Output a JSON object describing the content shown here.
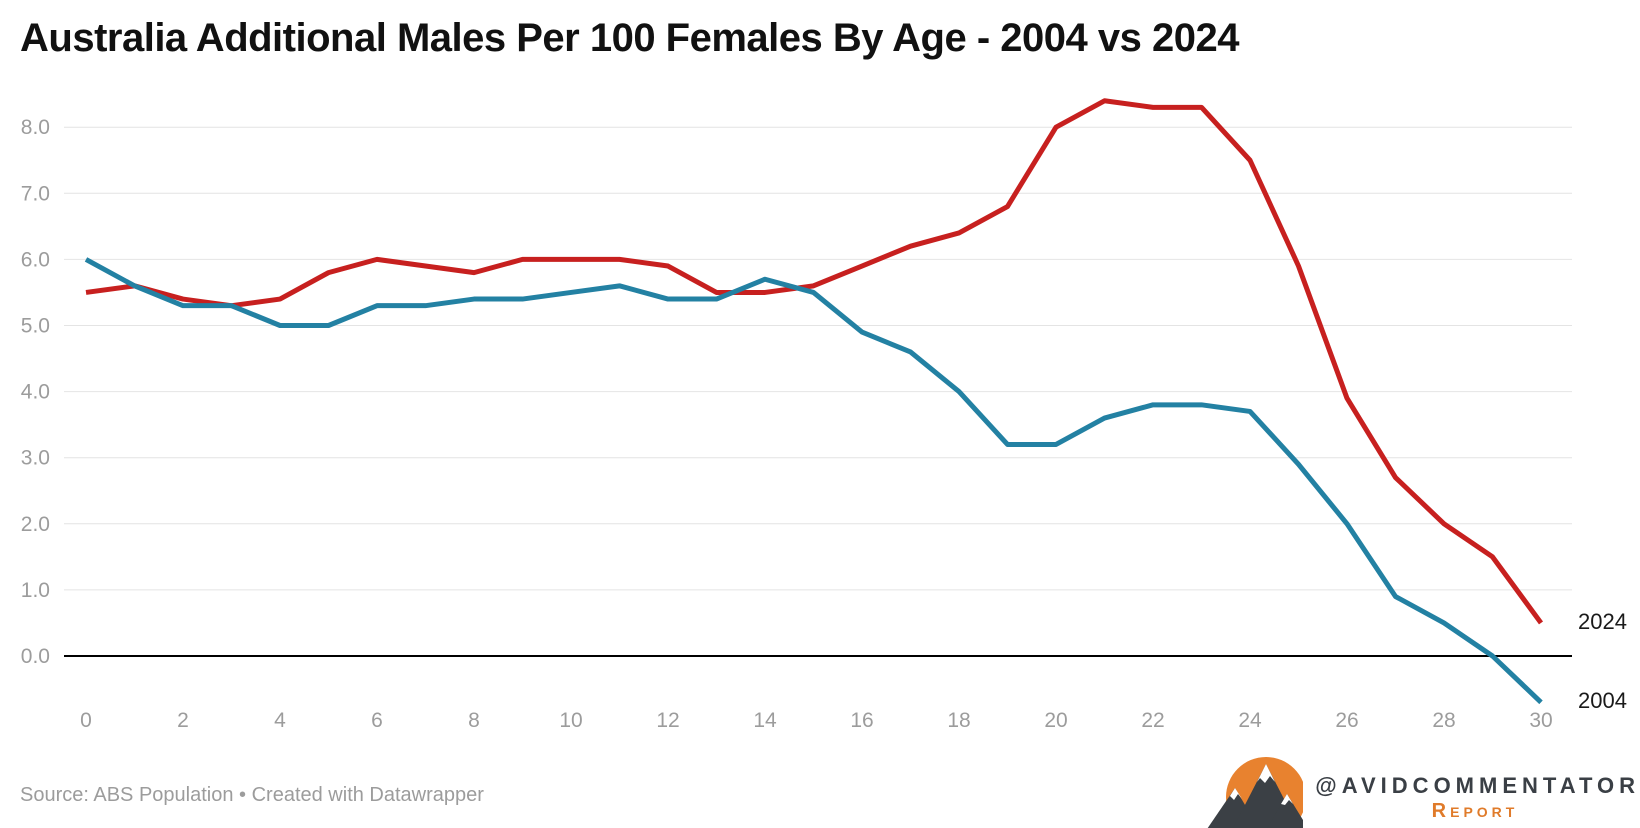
{
  "chart_data": {
    "type": "line",
    "title": "Australia Additional Males Per 100 Females By Age - 2004 vs 2024",
    "xlabel": "",
    "ylabel": "",
    "x": [
      0,
      1,
      2,
      3,
      4,
      5,
      6,
      7,
      8,
      9,
      10,
      11,
      12,
      13,
      14,
      15,
      16,
      17,
      18,
      19,
      20,
      21,
      22,
      23,
      24,
      25,
      26,
      27,
      28,
      29,
      30
    ],
    "series": [
      {
        "name": "2024",
        "color": "#c7201f",
        "values": [
          5.5,
          5.6,
          5.4,
          5.3,
          5.4,
          5.8,
          6.0,
          5.9,
          5.8,
          6.0,
          6.0,
          6.0,
          5.9,
          5.5,
          5.5,
          5.6,
          5.9,
          6.2,
          6.4,
          6.8,
          8.0,
          8.4,
          8.3,
          8.3,
          7.5,
          5.9,
          3.9,
          2.7,
          2.0,
          1.5,
          0.5
        ]
      },
      {
        "name": "2004",
        "color": "#2381a3",
        "values": [
          6.0,
          5.6,
          5.3,
          5.3,
          5.0,
          5.0,
          5.3,
          5.3,
          5.4,
          5.4,
          5.5,
          5.6,
          5.4,
          5.4,
          5.7,
          5.5,
          4.9,
          4.6,
          4.0,
          3.2,
          3.2,
          3.6,
          3.8,
          3.8,
          3.7,
          2.9,
          2.0,
          0.9,
          0.5,
          0.0,
          -0.7
        ]
      }
    ],
    "x_ticks": [
      "0",
      "2",
      "4",
      "6",
      "8",
      "10",
      "12",
      "14",
      "16",
      "18",
      "20",
      "22",
      "24",
      "26",
      "28",
      "30"
    ],
    "y_ticks": [
      "0.0",
      "1.0",
      "2.0",
      "3.0",
      "4.0",
      "5.0",
      "6.0",
      "7.0",
      "8.0"
    ],
    "xlim": [
      0,
      30
    ],
    "ylim": [
      -0.8,
      8.5
    ],
    "grid": "horizontal",
    "legend_position": "direct-labels-right",
    "grid_color": "#e4e4e4",
    "axis_color": "#000000",
    "tick_label_color": "#9c9c9c",
    "line_width": 5
  },
  "footer": {
    "source_text": "Source: ABS Population • Created with Datawrapper",
    "handle": "@AVIDCOMMENTATOR",
    "brand_sub": "Report",
    "logo_sun_color": "#e8822f",
    "logo_mountain_color": "#3b4045"
  }
}
